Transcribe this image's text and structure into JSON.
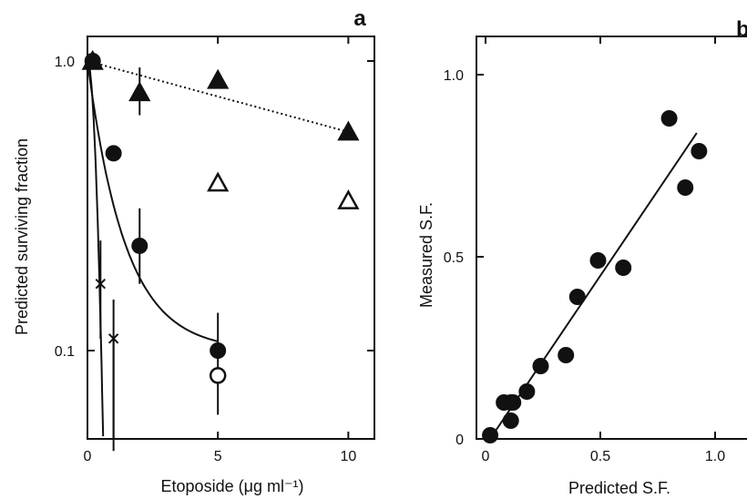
{
  "chart_data": [
    {
      "type": "scatter",
      "panel_label": "a",
      "xlabel": "Etoposide (μg ml⁻¹)",
      "ylabel": "Predicted surviving fraction",
      "x_scale": "linear",
      "y_scale": "log",
      "xlim": [
        0,
        11
      ],
      "ylim": [
        0.045,
        1.3
      ],
      "x_ticks": [
        0,
        5,
        10
      ],
      "x_tick_labels": [
        "0",
        "5",
        "10"
      ],
      "y_ticks": [
        1.0,
        0.1
      ],
      "y_tick_labels": [
        "1.0",
        "0.1"
      ],
      "grid": false,
      "legend": "none",
      "series": [
        {
          "marker": "filled-triangle",
          "x": [
            0.2,
            2.0,
            5.0,
            10.0
          ],
          "y": [
            1.0,
            0.78,
            0.86,
            0.57
          ],
          "errorbar_bounds": [
            null,
            [
              0.65,
              0.95
            ],
            null,
            null
          ],
          "fit": "dotted"
        },
        {
          "marker": "open-triangle",
          "x": [
            5.0,
            10.0
          ],
          "y": [
            0.38,
            0.33
          ]
        },
        {
          "marker": "filled-circle",
          "x": [
            0.2,
            1.0,
            2.0,
            5.0
          ],
          "y": [
            1.0,
            0.48,
            0.23,
            0.1
          ],
          "errorbar_bounds": [
            null,
            null,
            [
              0.17,
              0.31
            ],
            [
              0.06,
              0.135
            ]
          ],
          "fit": "solid"
        },
        {
          "marker": "open-circle",
          "x": [
            5.0
          ],
          "y": [
            0.082
          ]
        },
        {
          "marker": "cross",
          "x": [
            0.5,
            1.0
          ],
          "y": [
            0.17,
            0.11
          ],
          "errorbar_bounds": [
            [
              0.11,
              0.24
            ],
            [
              0.045,
              0.15
            ]
          ],
          "fit": "solid-steep"
        }
      ]
    },
    {
      "type": "scatter",
      "panel_label": "b",
      "xlabel": "Predicted S.F.",
      "ylabel": "Measured S.F.",
      "x_scale": "linear",
      "y_scale": "linear",
      "xlim": [
        0,
        1.0
      ],
      "ylim": [
        0,
        1.0
      ],
      "x_ticks": [
        0,
        0.5,
        1.0
      ],
      "x_tick_labels": [
        "0",
        "0.5",
        "1.0"
      ],
      "y_ticks": [
        0,
        0.5,
        1.0
      ],
      "y_tick_labels": [
        "0",
        "0.5",
        "1.0"
      ],
      "grid": false,
      "legend": "none",
      "series": [
        {
          "marker": "filled-circle",
          "x": [
            0.02,
            0.08,
            0.11,
            0.12,
            0.11,
            0.18,
            0.24,
            0.35,
            0.4,
            0.49,
            0.6,
            0.8,
            0.87,
            0.93
          ],
          "y": [
            0.01,
            0.1,
            0.1,
            0.1,
            0.05,
            0.13,
            0.2,
            0.23,
            0.39,
            0.49,
            0.47,
            0.88,
            0.69,
            0.79
          ]
        }
      ],
      "regression_line": {
        "x": [
          0.02,
          0.92
        ],
        "y": [
          0.0,
          0.84
        ]
      }
    }
  ]
}
